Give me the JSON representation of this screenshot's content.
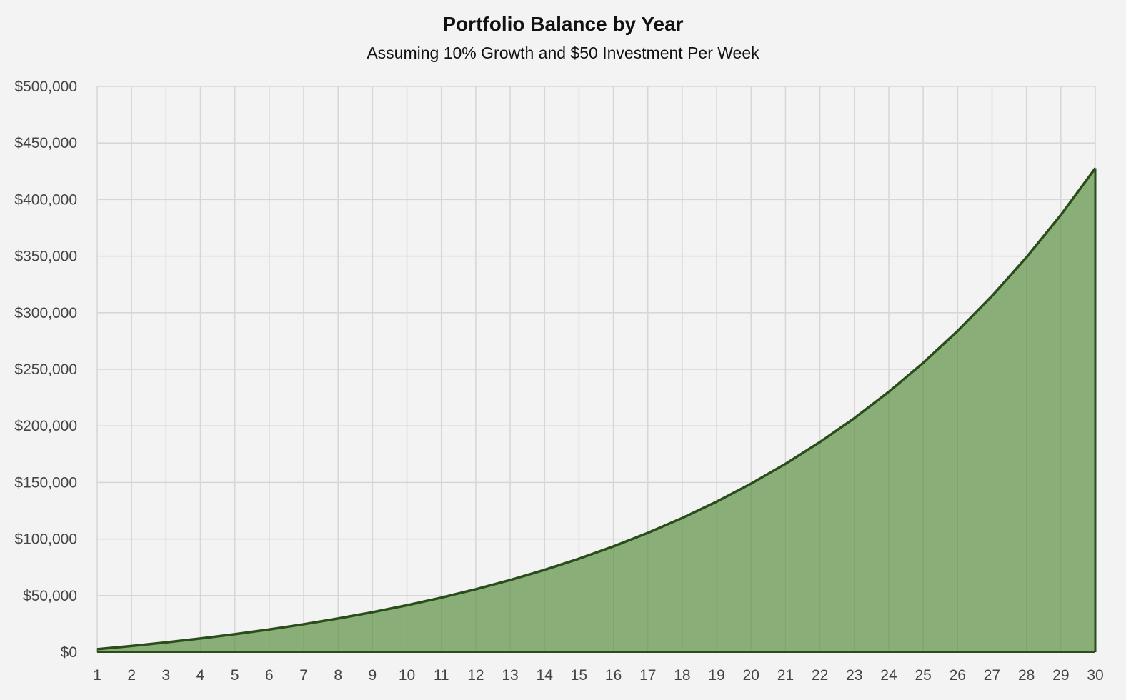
{
  "chart_data": {
    "type": "area",
    "title": "Portfolio Balance by Year",
    "subtitle": "Assuming 10% Growth and $50 Investment Per Week",
    "xlabel": "",
    "ylabel": "",
    "x": [
      1,
      2,
      3,
      4,
      5,
      6,
      7,
      8,
      9,
      10,
      11,
      12,
      13,
      14,
      15,
      16,
      17,
      18,
      19,
      20,
      21,
      22,
      23,
      24,
      25,
      26,
      27,
      28,
      29,
      30
    ],
    "series": [
      {
        "values": [
          2600,
          5460,
          8606,
          12067,
          15873,
          20061,
          24667,
          29733,
          35307,
          41438,
          48181,
          55599,
          63759,
          72735,
          82609,
          93470,
          105417,
          118558,
          133014,
          148916,
          166407,
          185648,
          206813,
          230094,
          255704,
          283874,
          314862,
          348948,
          386443,
          427687
        ]
      }
    ],
    "ylim": [
      0,
      500000
    ],
    "y_ticks": [
      "$0",
      "$50,000",
      "$100,000",
      "$150,000",
      "$200,000",
      "$250,000",
      "$300,000",
      "$350,000",
      "$400,000",
      "$450,000",
      "$500,000"
    ],
    "x_ticks": [
      "1",
      "2",
      "3",
      "4",
      "5",
      "6",
      "7",
      "8",
      "9",
      "10",
      "11",
      "12",
      "13",
      "14",
      "15",
      "16",
      "17",
      "18",
      "19",
      "20",
      "21",
      "22",
      "23",
      "24",
      "25",
      "26",
      "27",
      "28",
      "29",
      "30"
    ],
    "grid": true,
    "legend": "none",
    "colors": {
      "fill": "#8aae78",
      "line": "#2b4d1c",
      "grid": "#d6d6d6",
      "background": "#f3f3f3"
    }
  }
}
